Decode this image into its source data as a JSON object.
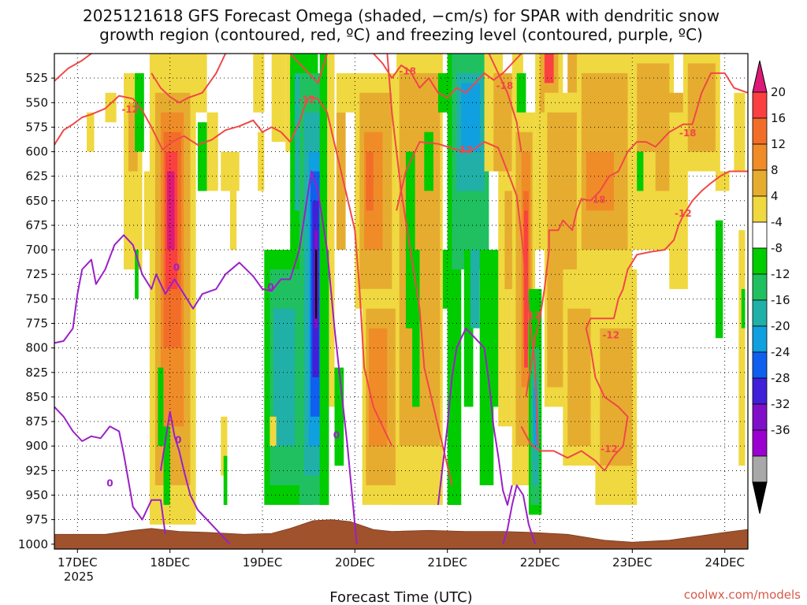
{
  "chart_data": {
    "type": "heatmap",
    "title_line1": "2025121618 GFS Forecast Omega (shaded, −cm/s) for SPAR with dendritic snow",
    "title_line2": "growth region (contoured, red, ºC) and freezing level (contoured, purple, ºC)",
    "xlabel": "Forecast Time (UTC)",
    "credit": "coolwx.com/models",
    "x_start_label": "17DEC",
    "x_year_label": "2025",
    "x_ticks": [
      "17DEC",
      "18DEC",
      "19DEC",
      "20DEC",
      "21DEC",
      "22DEC",
      "23DEC",
      "24DEC"
    ],
    "x_range_days": [
      16.75,
      24.25
    ],
    "y_ticks": [
      525,
      550,
      575,
      600,
      625,
      650,
      675,
      700,
      725,
      750,
      775,
      800,
      825,
      850,
      875,
      900,
      925,
      950,
      975,
      1000
    ],
    "y_range_hpa": [
      500,
      1005
    ],
    "colorbar": {
      "labels": [
        20,
        16,
        12,
        8,
        4,
        -4,
        -8,
        -12,
        -16,
        -20,
        -24,
        -28,
        -32,
        -36
      ],
      "colors": [
        "#dc1a78",
        "#fa4040",
        "#f26e28",
        "#f08c28",
        "#e6ac30",
        "#f0d840",
        "#ffffff",
        "#00cc00",
        "#20c060",
        "#20b0a8",
        "#10a0e0",
        "#1060f0",
        "#4020d8",
        "#8010c8",
        "#9a00d0",
        "#a8a8a8",
        "#000000"
      ]
    },
    "series": [
      {
        "name": "Omega (−cm/s)",
        "kind": "shaded",
        "range": [
          -36,
          20
        ]
      },
      {
        "name": "Dendritic growth region isotherms (ºC)",
        "kind": "contour",
        "color": "#f04848",
        "levels": [
          -12,
          -18
        ]
      },
      {
        "name": "Freezing level (ºC)",
        "kind": "contour",
        "color": "#9a20c8",
        "levels": [
          0
        ]
      }
    ],
    "contour_labels": [
      {
        "text": "-12",
        "day": 17.57,
        "hpa": 557
      },
      {
        "text": "-18",
        "day": 20.57,
        "hpa": 518
      },
      {
        "text": "-12",
        "day": 19.48,
        "hpa": 547
      },
      {
        "text": "-18",
        "day": 21.62,
        "hpa": 533
      },
      {
        "text": "-12",
        "day": 21.18,
        "hpa": 598
      },
      {
        "text": "-18",
        "day": 23.6,
        "hpa": 581
      },
      {
        "text": "-18",
        "day": 22.62,
        "hpa": 649
      },
      {
        "text": "-12",
        "day": 23.55,
        "hpa": 663
      },
      {
        "text": "-12",
        "day": 21.92,
        "hpa": 767
      },
      {
        "text": "-12",
        "day": 22.77,
        "hpa": 787
      },
      {
        "text": "-12",
        "day": 22.75,
        "hpa": 903
      },
      {
        "text": "0",
        "day": 18.07,
        "hpa": 718
      },
      {
        "text": "0",
        "day": 18.09,
        "hpa": 894
      },
      {
        "text": "0",
        "day": 17.35,
        "hpa": 938
      },
      {
        "text": "0",
        "day": 19.09,
        "hpa": 738
      },
      {
        "text": "0",
        "day": 19.8,
        "hpa": 889
      }
    ]
  }
}
